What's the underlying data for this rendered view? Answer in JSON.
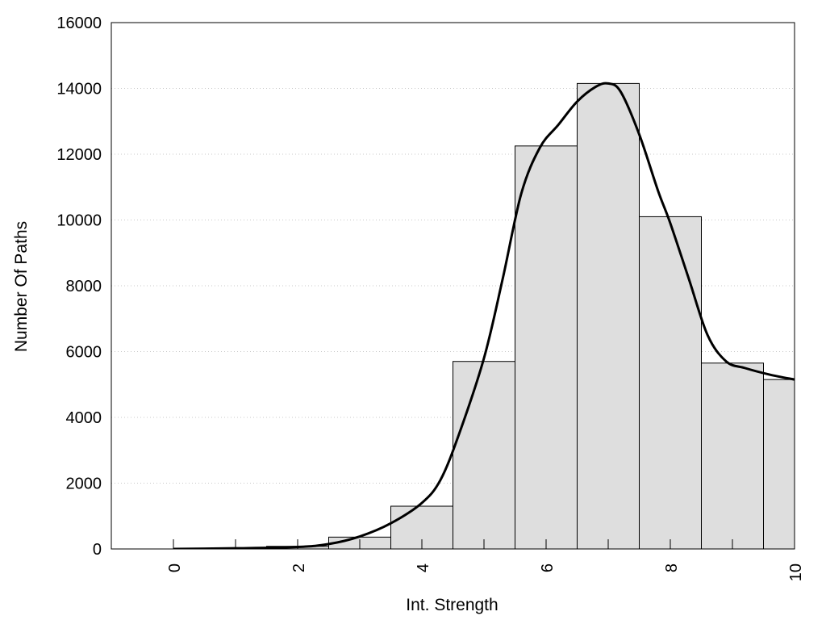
{
  "chart_data": {
    "type": "bar",
    "title": "",
    "xlabel": "Int. Strength",
    "ylabel": "Number Of Paths",
    "xlim": [
      -1,
      10
    ],
    "ylim": [
      0,
      16000
    ],
    "x_ticks": [
      0,
      2,
      4,
      6,
      8,
      10
    ],
    "y_ticks": [
      0,
      2000,
      4000,
      6000,
      8000,
      10000,
      12000,
      14000,
      16000
    ],
    "grid": "horizontal-dotted",
    "legend": "none",
    "bar_width": 1,
    "bars": [
      {
        "x": 0,
        "value": 0
      },
      {
        "x": 1,
        "value": 10
      },
      {
        "x": 2,
        "value": 80
      },
      {
        "x": 3,
        "value": 360
      },
      {
        "x": 4,
        "value": 1300
      },
      {
        "x": 5,
        "value": 5700
      },
      {
        "x": 6,
        "value": 12250
      },
      {
        "x": 7,
        "value": 14150
      },
      {
        "x": 8,
        "value": 10100
      },
      {
        "x": 9,
        "value": 5650
      },
      {
        "x": 10,
        "value": 5150
      }
    ],
    "curve": {
      "x": [
        0,
        1,
        2,
        2.5,
        3,
        3.5,
        4,
        4.3,
        4.6,
        5,
        5.3,
        5.6,
        5.9,
        6.2,
        6.5,
        6.8,
        7.0,
        7.2,
        7.5,
        7.8,
        8.0,
        8.3,
        8.6,
        8.9,
        9.2,
        9.6,
        10
      ],
      "y": [
        0,
        20,
        60,
        150,
        380,
        780,
        1400,
        2100,
        3500,
        5800,
        8200,
        10800,
        12200,
        12900,
        13600,
        14050,
        14150,
        13900,
        12600,
        10900,
        9900,
        8200,
        6500,
        5700,
        5500,
        5300,
        5150
      ]
    },
    "colors": {
      "bar_fill": "#dedede",
      "bar_stroke": "#000000",
      "curve": "#000000",
      "grid": "#c8c8c8"
    }
  }
}
